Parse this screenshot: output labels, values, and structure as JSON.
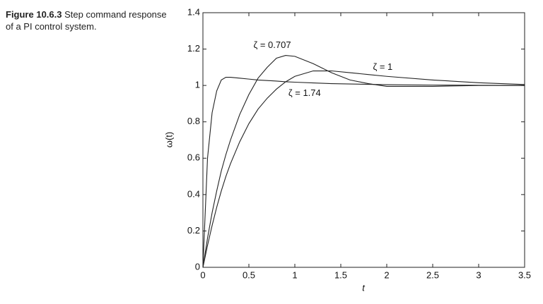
{
  "caption": {
    "label": "Figure 10.6.3",
    "text": "Step command response of a PI control system."
  },
  "chart_data": {
    "type": "line",
    "xlabel": "t",
    "ylabel": "ω(t)",
    "x": [
      0,
      0.05,
      0.1,
      0.15,
      0.2,
      0.25,
      0.3,
      0.4,
      0.5,
      0.6,
      0.7,
      0.8,
      0.9,
      1.0,
      1.2,
      1.4,
      1.6,
      1.8,
      2.0,
      2.5,
      3.0,
      3.5
    ],
    "series": [
      {
        "name": "ζ = 0.707",
        "color": "#222222",
        "values": [
          0,
          0.16,
          0.3,
          0.42,
          0.53,
          0.62,
          0.7,
          0.84,
          0.95,
          1.04,
          1.1,
          1.15,
          1.165,
          1.16,
          1.12,
          1.07,
          1.03,
          1.01,
          0.995,
          0.995,
          1.0,
          1.0
        ]
      },
      {
        "name": "ζ = 1",
        "color": "#222222",
        "values": [
          0,
          0.12,
          0.23,
          0.33,
          0.42,
          0.5,
          0.57,
          0.69,
          0.79,
          0.87,
          0.93,
          0.98,
          1.02,
          1.05,
          1.08,
          1.08,
          1.07,
          1.06,
          1.05,
          1.03,
          1.015,
          1.005
        ]
      },
      {
        "name": "ζ = 1.74",
        "color": "#222222",
        "values": [
          0,
          0.6,
          0.85,
          0.97,
          1.03,
          1.045,
          1.045,
          1.04,
          1.035,
          1.03,
          1.027,
          1.024,
          1.02,
          1.018,
          1.014,
          1.01,
          1.008,
          1.006,
          1.004,
          1.002,
          1.001,
          1.0
        ]
      }
    ],
    "xlim": [
      0,
      3.5
    ],
    "xticks": [
      0,
      0.5,
      1,
      1.5,
      2,
      2.5,
      3,
      3.5
    ],
    "ylim": [
      0,
      1.4
    ],
    "yticks": [
      0,
      0.2,
      0.4,
      0.6,
      0.8,
      1,
      1.2,
      1.4
    ]
  }
}
